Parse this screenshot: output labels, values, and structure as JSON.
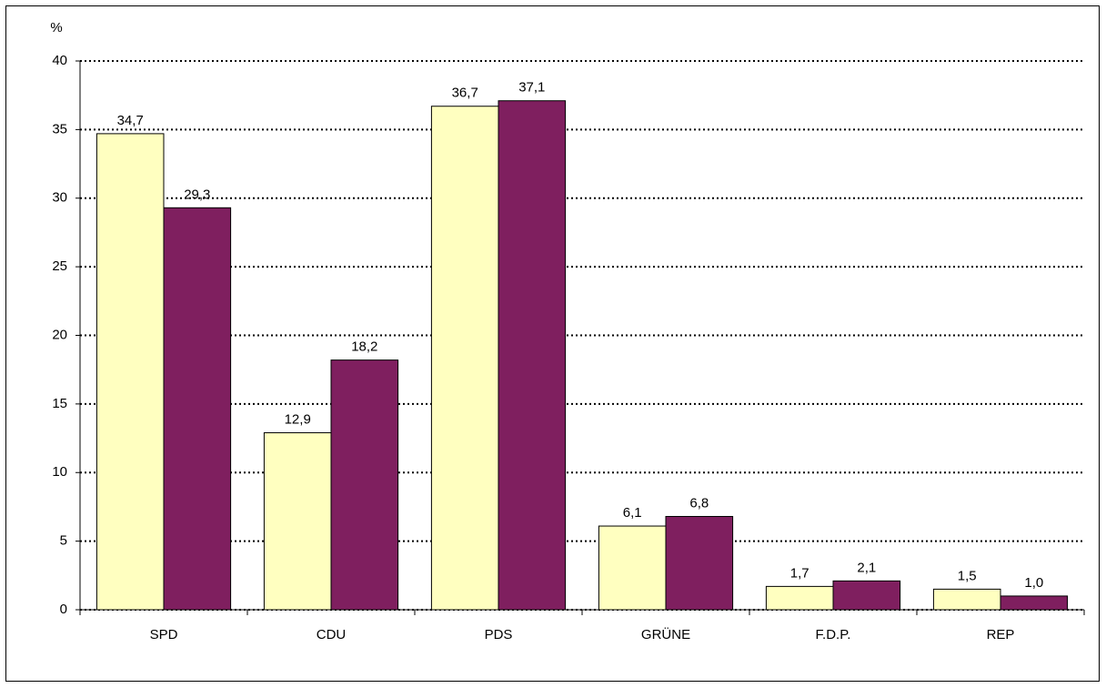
{
  "chart_data": {
    "type": "bar",
    "y_label": "%",
    "categories": [
      "SPD",
      "CDU",
      "PDS",
      "GRÜNE",
      "F.D.P.",
      "REP"
    ],
    "series": [
      {
        "color": "#ffffc0",
        "values": [
          34.7,
          12.9,
          36.7,
          6.1,
          1.7,
          1.5
        ],
        "value_labels": [
          "34,7",
          "12,9",
          "36,7",
          "6,1",
          "1,7",
          "1,5"
        ]
      },
      {
        "color": "#7f1f5f",
        "values": [
          29.3,
          18.2,
          37.1,
          6.8,
          2.1,
          1.0
        ],
        "value_labels": [
          "29,3",
          "18,2",
          "37,1",
          "6,8",
          "2,1",
          "1,0"
        ]
      }
    ],
    "ylim": [
      0,
      40
    ],
    "yticks": [
      0,
      5,
      10,
      15,
      20,
      25,
      30,
      35,
      40
    ],
    "grid": true
  }
}
